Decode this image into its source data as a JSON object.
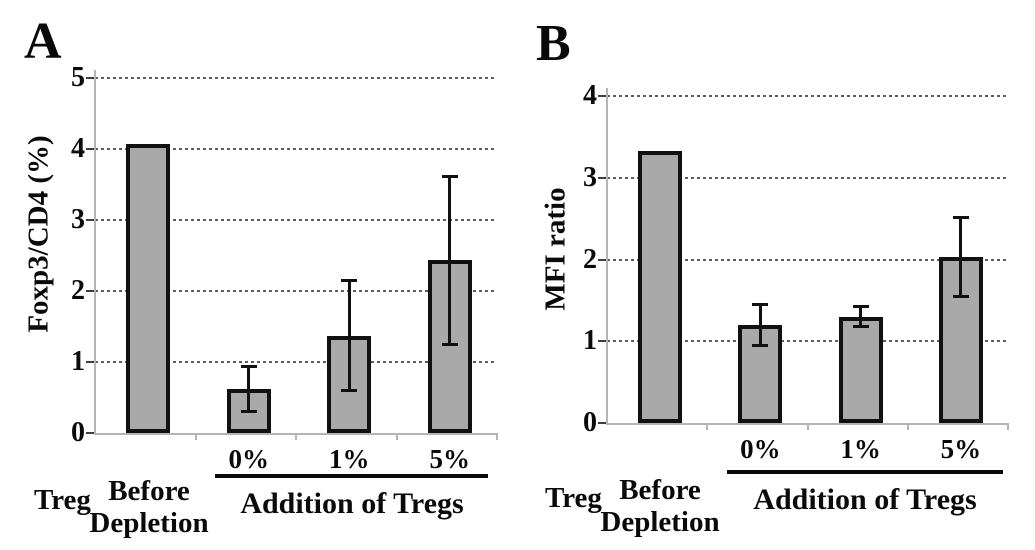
{
  "colors": {
    "bar_fill": "#a9a9a9",
    "bar_border": "#111111",
    "gridline": "#5e5e5e",
    "axis": "#b4b4b4",
    "text": "#0a0a0a"
  },
  "chart_data": [
    {
      "panel": "A",
      "type": "bar",
      "title": "",
      "ylabel": "Foxp3/CD4 (%)",
      "xlabel": "",
      "ylim": [
        0,
        5
      ],
      "yticks": [
        0,
        1,
        2,
        3,
        4,
        5
      ],
      "grid": "horizontal-dashed",
      "legend": "none",
      "categories": [
        "Before Depletion",
        "0%",
        "1%",
        "5%"
      ],
      "values": [
        4.07,
        0.62,
        1.37,
        2.43
      ],
      "errors": [
        null,
        0.33,
        0.78,
        1.19
      ],
      "row_label": "Treg",
      "first_category_label": "Before Depletion",
      "group_label": "Addition of Tregs",
      "grouped_categories": [
        "0%",
        "1%",
        "5%"
      ]
    },
    {
      "panel": "B",
      "type": "bar",
      "title": "",
      "ylabel": "MFI ratio",
      "xlabel": "",
      "ylim": [
        0,
        4
      ],
      "yticks": [
        0,
        1,
        2,
        3,
        4
      ],
      "grid": "horizontal-dashed",
      "legend": "none",
      "categories": [
        "Before Depletion",
        "0%",
        "1%",
        "5%"
      ],
      "values": [
        3.33,
        1.2,
        1.3,
        2.03
      ],
      "errors": [
        null,
        0.26,
        0.13,
        0.49
      ],
      "row_label": "Treg",
      "first_category_label": "Before Depletion",
      "group_label": "Addition of Tregs",
      "grouped_categories": [
        "0%",
        "1%",
        "5%"
      ]
    }
  ]
}
